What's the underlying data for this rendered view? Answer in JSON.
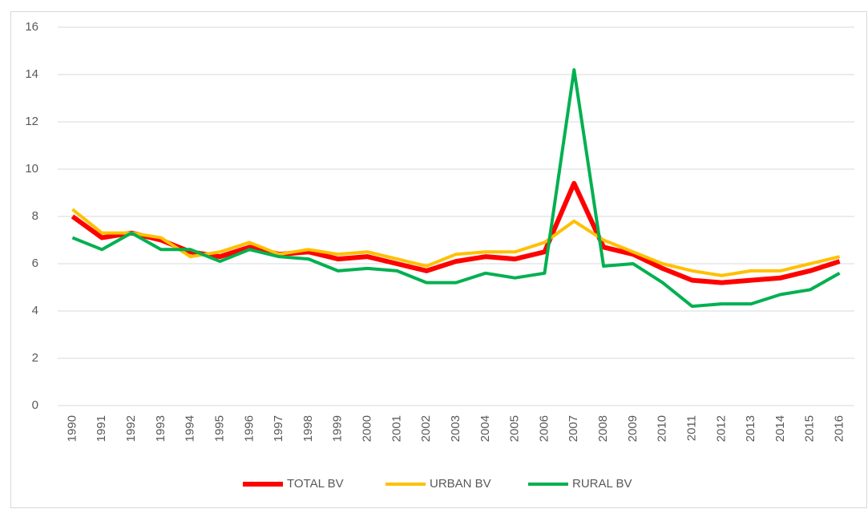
{
  "chart_data": {
    "type": "line",
    "categories": [
      "1990",
      "1991",
      "1992",
      "1993",
      "1994",
      "1995",
      "1996",
      "1997",
      "1998",
      "1999",
      "2000",
      "2001",
      "2002",
      "2003",
      "2004",
      "2005",
      "2006",
      "2007",
      "2008",
      "2009",
      "2010",
      "2011",
      "2012",
      "2013",
      "2014",
      "2015",
      "2016"
    ],
    "series": [
      {
        "name": "TOTAL BV",
        "color": "#ff0000",
        "values": [
          8.0,
          7.1,
          7.3,
          7.0,
          6.5,
          6.3,
          6.7,
          6.4,
          6.5,
          6.2,
          6.3,
          6.0,
          5.7,
          6.1,
          6.3,
          6.2,
          6.5,
          9.4,
          6.7,
          6.4,
          5.8,
          5.3,
          5.2,
          5.3,
          5.4,
          5.7,
          6.1
        ]
      },
      {
        "name": "URBAN BV",
        "color": "#ffc000",
        "values": [
          8.3,
          7.3,
          7.3,
          7.1,
          6.3,
          6.5,
          6.9,
          6.4,
          6.6,
          6.4,
          6.5,
          6.2,
          5.9,
          6.4,
          6.5,
          6.5,
          6.9,
          7.8,
          7.0,
          6.5,
          6.0,
          5.7,
          5.5,
          5.7,
          5.7,
          6.0,
          6.3
        ]
      },
      {
        "name": "RURAL BV",
        "color": "#00b050",
        "values": [
          7.1,
          6.6,
          7.3,
          6.6,
          6.6,
          6.1,
          6.6,
          6.3,
          6.2,
          5.7,
          5.8,
          5.7,
          5.2,
          5.2,
          5.6,
          5.4,
          5.6,
          14.2,
          5.9,
          6.0,
          5.2,
          4.2,
          4.3,
          4.3,
          4.7,
          4.9,
          5.6
        ]
      }
    ],
    "ylim": [
      0,
      16
    ],
    "yticks": [
      0,
      2,
      4,
      6,
      8,
      10,
      12,
      14,
      16
    ],
    "grid": true,
    "legend": "bottom"
  }
}
